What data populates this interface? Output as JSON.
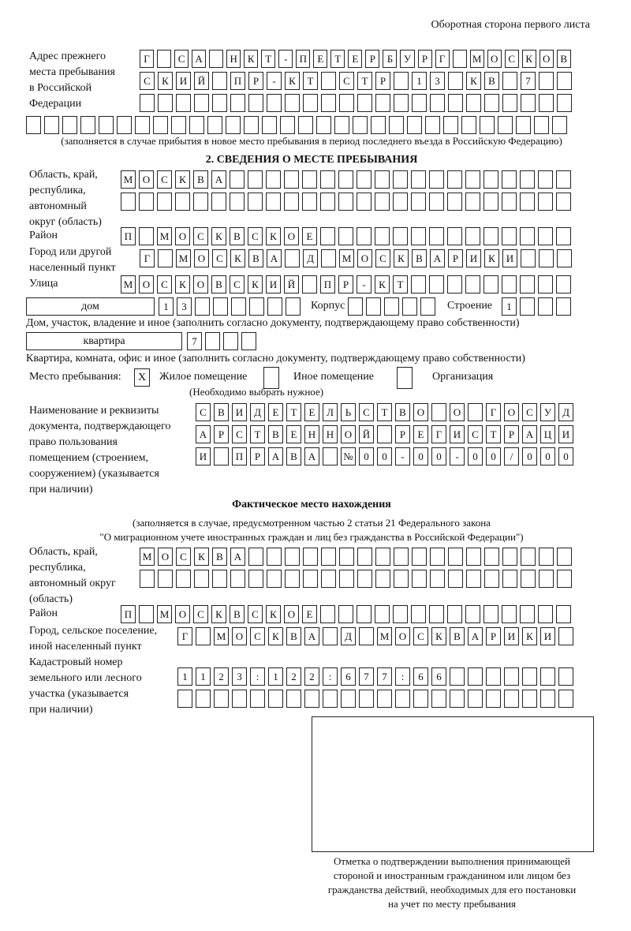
{
  "header": "Оборотная сторона первого листа",
  "prev_address": {
    "label": [
      "Адрес прежнего",
      "места пребывания",
      "в Российской",
      "Федерации"
    ],
    "rows": [
      "Г СА НКТ-ПЕТЕРБУРГ МОСКОВ",
      "СКИЙ ПР-КТ СТР 13 КВ 7",
      "",
      ""
    ],
    "note": "(заполняется в случае прибытия в новое место пребывания в период последнего въезда в Российскую Федерацию)"
  },
  "section2": {
    "title": "2. СВЕДЕНИЯ О МЕСТЕ ПРЕБЫВАНИЯ",
    "region_label": [
      "Область, край,",
      "республика,",
      "автономный",
      "округ (область)"
    ],
    "region_rows": [
      "МОСКВА",
      ""
    ],
    "district_label": "Район",
    "district": "П МОСКВСКОЕ",
    "city_label": [
      "Город или другой",
      "населенный пункт"
    ],
    "city": "Г МОСКВА Д МОСКВАРИКИ",
    "street_label": "Улица",
    "street": "МОСКОВСКИЙ ПР-КТ",
    "house_type": "дом",
    "house": "13",
    "korpus_label": "Корпус",
    "korpus": "",
    "building_label": "Строение",
    "building": "1",
    "house_note": "Дом, участок, владение и иное (заполнить согласно документу, подтверждающему право собственности)",
    "flat_type": "квартира",
    "flat": "7",
    "flat_note": "Квартира, комната, офис и иное (заполнить согласно документу, подтверждающему право собственности)",
    "stay_label": "Место пребывания:",
    "stay_options": [
      {
        "label": "Жилое помещение",
        "mark": "X"
      },
      {
        "label": "Иное помещение",
        "mark": ""
      },
      {
        "label": "Организация",
        "mark": ""
      }
    ],
    "stay_note": "(Необходимо выбрать нужное)",
    "doc_label": [
      "Наименование и реквизиты",
      "документа, подтверждающего",
      "право пользования",
      "помещением (строением,",
      "сооружением) (указывается",
      "при наличии)"
    ],
    "doc_rows": [
      "СВИДЕТЕЛЬСТВО О ГОСУД",
      "АРСТВЕННОЙ РЕГИСТРАЦИ",
      "И ПРАВА №00-00-00/000"
    ]
  },
  "actual": {
    "title": "Фактическое место нахождения",
    "subtitle": [
      "(заполняется в случае, предусмотренном частью 2 статьи 21 Федерального закона",
      "\"О миграционном учете иностранных граждан и лиц без гражданства в Российской Федерации\")"
    ],
    "region_label": [
      "Область, край,",
      "республика,",
      "автономный округ",
      "(область)"
    ],
    "region_rows": [
      "МОСКВА",
      ""
    ],
    "district_label": "Район",
    "district": "П МОСКВСКОЕ",
    "city_label": [
      "Город, сельское поселение,",
      "иной населенный пункт"
    ],
    "city": "Г МОСКВА Д МОСКВАРИКИ",
    "cadastral_label": [
      "Кадастровый номер",
      "земельного или лесного",
      "участка (указывается",
      "при наличии)"
    ],
    "cadastral_rows": [
      "1123:122:677:66",
      ""
    ]
  },
  "stamp_caption": [
    "Отметка о подтверждении выполнения принимающей",
    "стороной и иностранным гражданином или лицом без",
    "гражданства действий, необходимых для его постановки",
    "на учет по месту пребывания"
  ]
}
